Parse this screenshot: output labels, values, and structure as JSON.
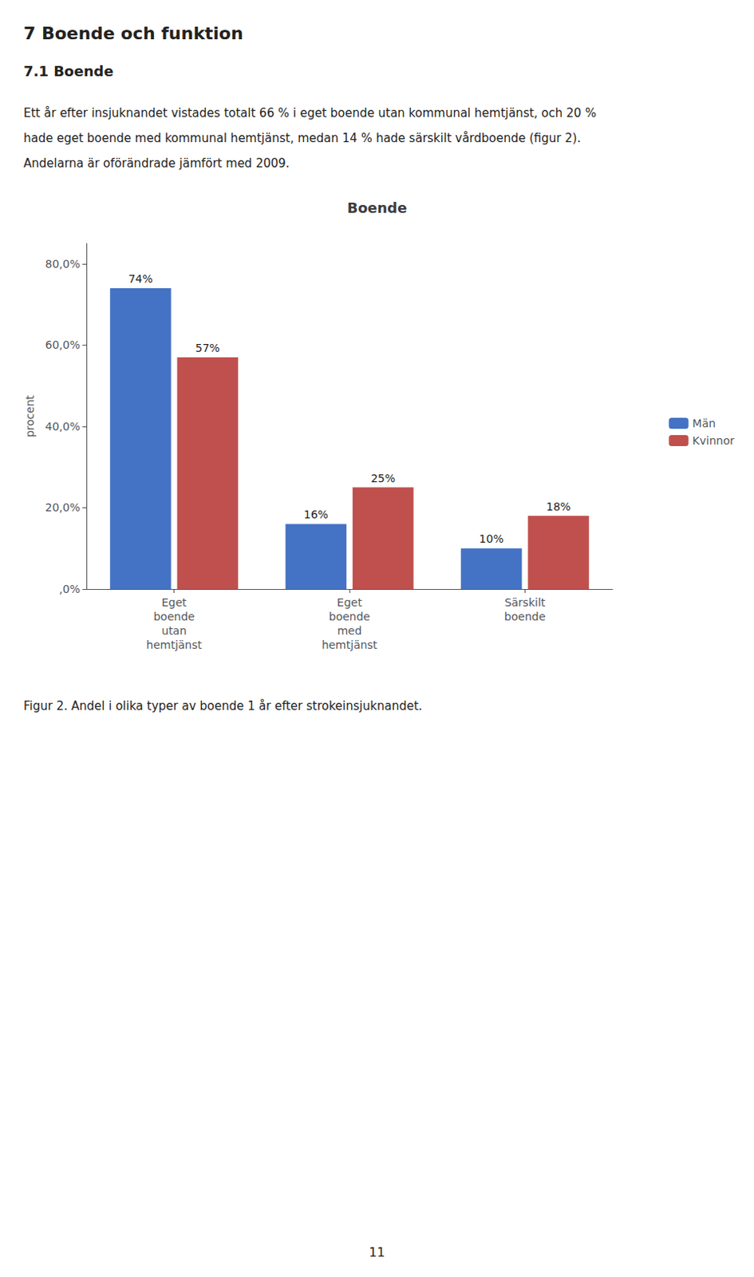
{
  "heading": "7 Boende och funktion",
  "subheading": "7.1 Boende",
  "body": [
    "Ett år efter insjuknandet vistades totalt 66 % i eget boende utan kommunal hemtjänst, och 20 %",
    "hade eget boende med kommunal hemtjänst, medan 14 % hade särskilt vårdboende (figur 2).",
    "Andelarna är oförändrade jämfört med 2009."
  ],
  "caption": "Figur 2. Andel i olika typer av boende 1 år efter strokeinsjuknandet.",
  "page_number": "11",
  "chart_data": {
    "type": "bar",
    "title": "Boende",
    "ylabel": "procent",
    "categories": [
      "Eget\nboende\nutan\nhemtjänst",
      "Eget\nboende\nmed\nhemtjänst",
      "Särskilt\nboende"
    ],
    "series": [
      {
        "name": "Män",
        "color": "#4472C4",
        "values": [
          74,
          16,
          10
        ],
        "value_labels": [
          "74%",
          "16%",
          "10%"
        ]
      },
      {
        "name": "Kvinnor",
        "color": "#C0504D",
        "values": [
          57,
          25,
          18
        ],
        "value_labels": [
          "57%",
          "25%",
          "18%"
        ]
      }
    ],
    "ylim": [
      0,
      85
    ],
    "yticks": [
      {
        "value": 0,
        "label": ",0%"
      },
      {
        "value": 20,
        "label": "20,0%"
      },
      {
        "value": 40,
        "label": "40,0%"
      },
      {
        "value": 60,
        "label": "60,0%"
      },
      {
        "value": 80,
        "label": "80,0%"
      }
    ],
    "grid": false,
    "legend": "right",
    "data_labels": true
  }
}
